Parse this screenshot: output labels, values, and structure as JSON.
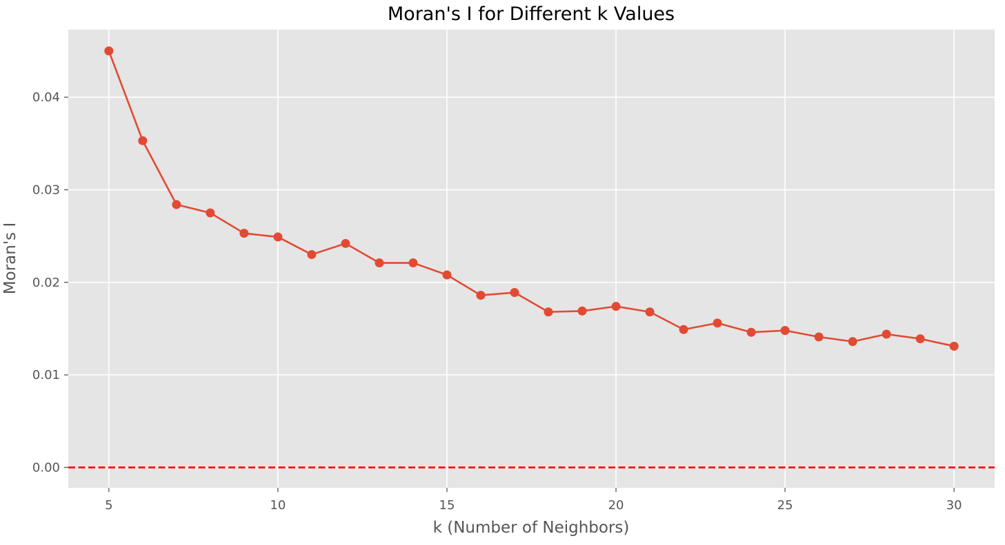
{
  "chart_data": {
    "type": "line",
    "title": "Moran's I for Different k Values",
    "xlabel": "k (Number of Neighbors)",
    "ylabel": "Moran's I",
    "xlim": [
      3.8,
      31.2
    ],
    "ylim": [
      -0.0022,
      0.0473
    ],
    "xticks": [
      5,
      10,
      15,
      20,
      25,
      30
    ],
    "xtick_labels": [
      "5",
      "10",
      "15",
      "20",
      "25",
      "30"
    ],
    "yticks": [
      0.0,
      0.01,
      0.02,
      0.03,
      0.04
    ],
    "ytick_labels": [
      "0.00",
      "0.01",
      "0.02",
      "0.03",
      "0.04"
    ],
    "grid": true,
    "series": [
      {
        "color": "#E24A33",
        "marker": "circle",
        "x": [
          5,
          6,
          7,
          8,
          9,
          10,
          11,
          12,
          13,
          14,
          15,
          16,
          17,
          18,
          19,
          20,
          21,
          22,
          23,
          24,
          25,
          26,
          27,
          28,
          29,
          30
        ],
        "y": [
          0.045,
          0.0353,
          0.0284,
          0.0275,
          0.0253,
          0.0249,
          0.023,
          0.0242,
          0.0221,
          0.0221,
          0.0208,
          0.0186,
          0.0189,
          0.0168,
          0.0169,
          0.0174,
          0.0168,
          0.0149,
          0.0156,
          0.0146,
          0.0148,
          0.0141,
          0.0136,
          0.0144,
          0.0139,
          0.0131
        ]
      }
    ],
    "reference_line": {
      "y": 0.0,
      "color": "#FF0000",
      "style": "dashed"
    },
    "colors": {
      "plot_background": "#E5E5E5",
      "grid": "#FFFFFF",
      "text": "#555555",
      "title": "#000000"
    }
  }
}
